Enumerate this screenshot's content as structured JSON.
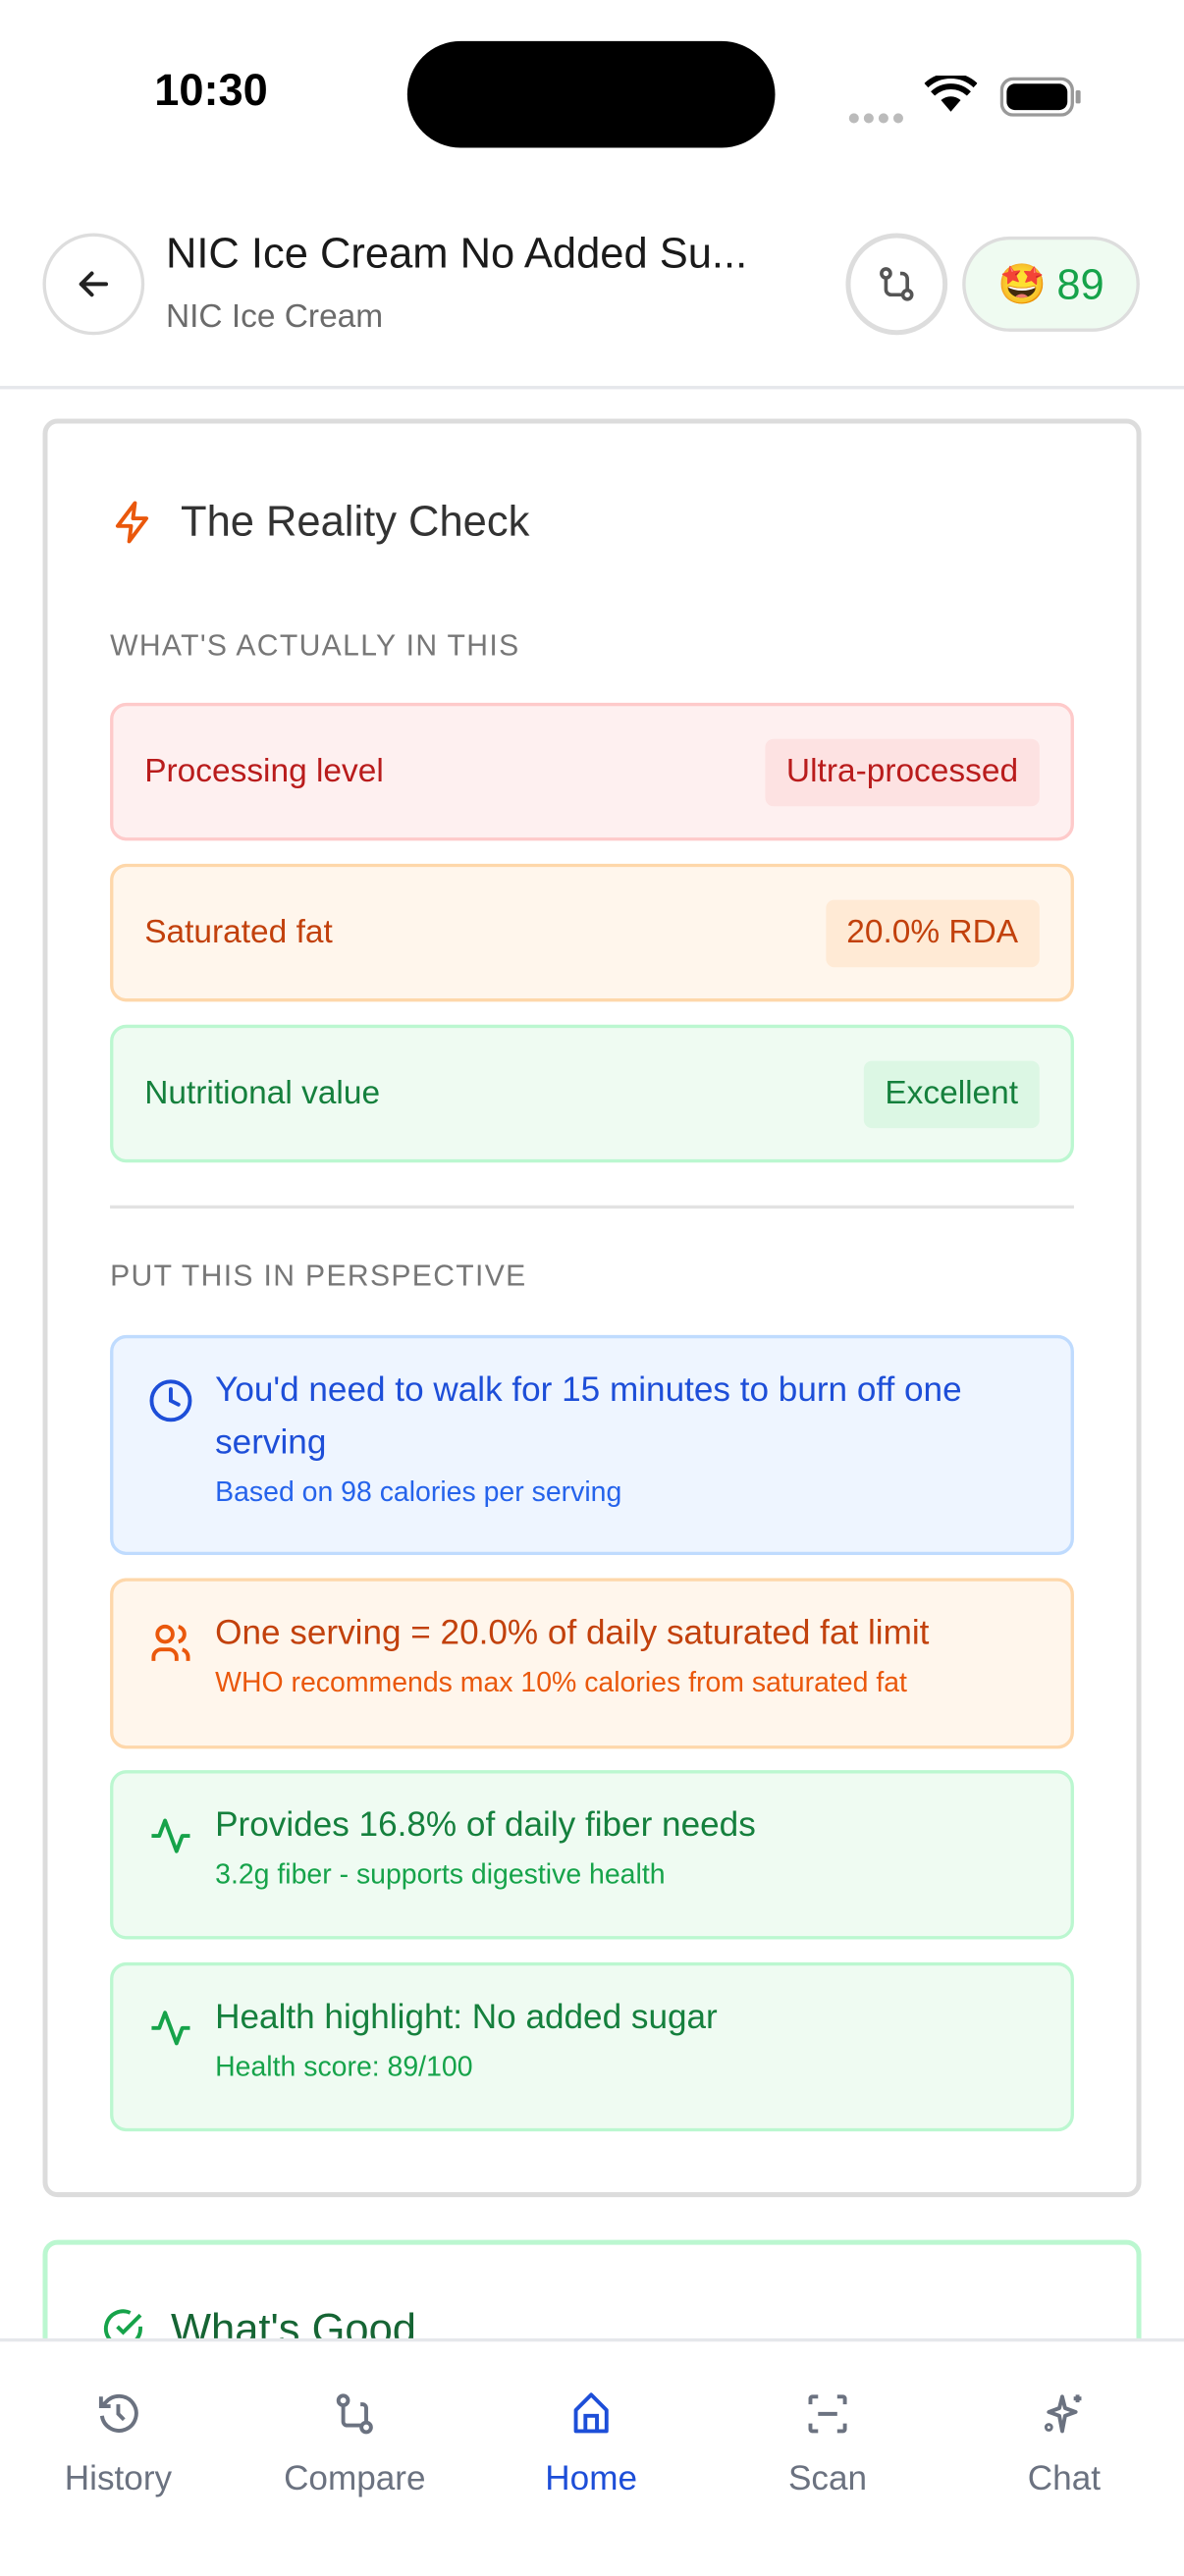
{
  "status_bar": {
    "time": "10:30"
  },
  "header": {
    "title": "NIC Ice Cream No Added Su...",
    "subtitle": "NIC Ice Cream",
    "score": "89",
    "score_emoji": "🤩"
  },
  "reality_check": {
    "heading": "The Reality Check",
    "section1_label": "WHAT'S ACTUALLY IN THIS",
    "rows": [
      {
        "label": "Processing level",
        "value": "Ultra-processed"
      },
      {
        "label": "Saturated fat",
        "value": "20.0% RDA"
      },
      {
        "label": "Nutritional value",
        "value": "Excellent"
      }
    ],
    "section2_label": "PUT THIS IN PERSPECTIVE",
    "perspective": [
      {
        "icon": "clock-icon",
        "main": "You'd need to walk for 15 minutes to burn off one serving",
        "sub": "Based on 98 calories per serving"
      },
      {
        "icon": "users-icon",
        "main": "One serving = 20.0% of daily saturated fat limit",
        "sub": "WHO recommends max 10% calories from saturated fat"
      },
      {
        "icon": "activity-icon",
        "main": "Provides 16.8% of daily fiber needs",
        "sub": "3.2g fiber - supports digestive health"
      },
      {
        "icon": "activity-icon",
        "main": "Health highlight: No added sugar",
        "sub": "Health score: 89/100"
      }
    ]
  },
  "whats_good": {
    "heading": "What's Good"
  },
  "tabs": [
    {
      "label": "History",
      "icon": "history-icon"
    },
    {
      "label": "Compare",
      "icon": "compare-icon"
    },
    {
      "label": "Home",
      "icon": "home-icon",
      "active": true
    },
    {
      "label": "Scan",
      "icon": "scan-icon"
    },
    {
      "label": "Chat",
      "icon": "sparkle-icon"
    }
  ],
  "colors": {
    "active": "#1d4ed8",
    "green": "#16a34a",
    "red": "#b91c1c",
    "orange": "#c2410c",
    "blue": "#1d4ed8"
  }
}
